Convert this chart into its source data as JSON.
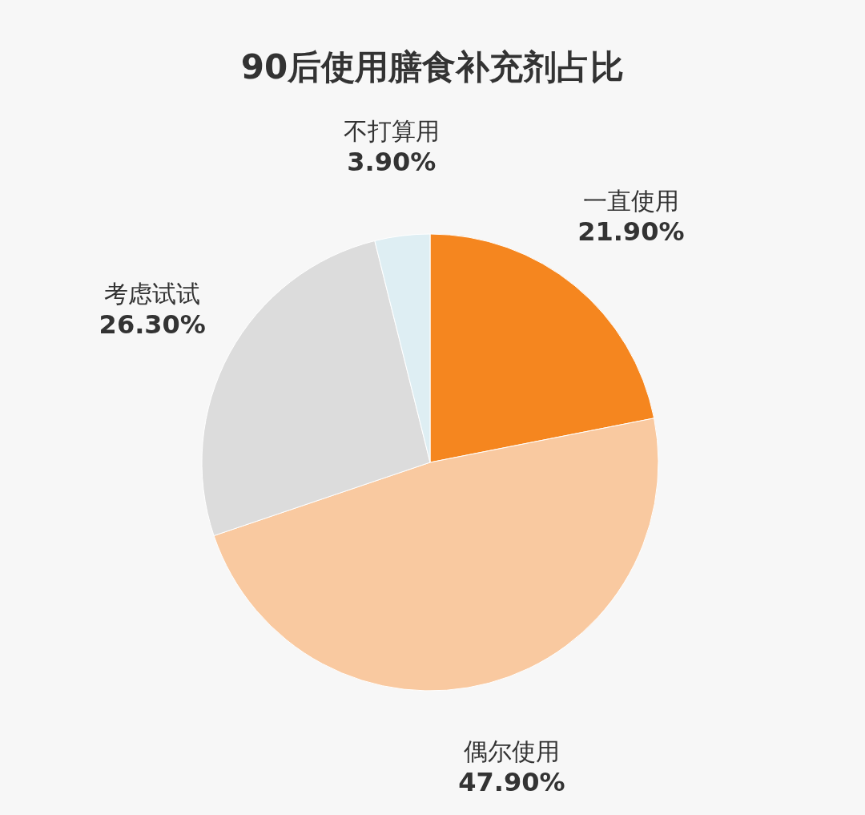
{
  "chart_data": {
    "type": "pie",
    "title": "90后使用膳食补充剂占比",
    "categories": [
      "一直使用",
      "偶尔使用",
      "考虑试试",
      "不打算用"
    ],
    "values": [
      21.9,
      47.9,
      26.3,
      3.9
    ],
    "value_labels": [
      "21.90%",
      "47.90%",
      "26.30%",
      "3.90%"
    ],
    "colors": [
      "#f5861f",
      "#f9c9a0",
      "#dcdcdc",
      "#deeef3"
    ]
  }
}
